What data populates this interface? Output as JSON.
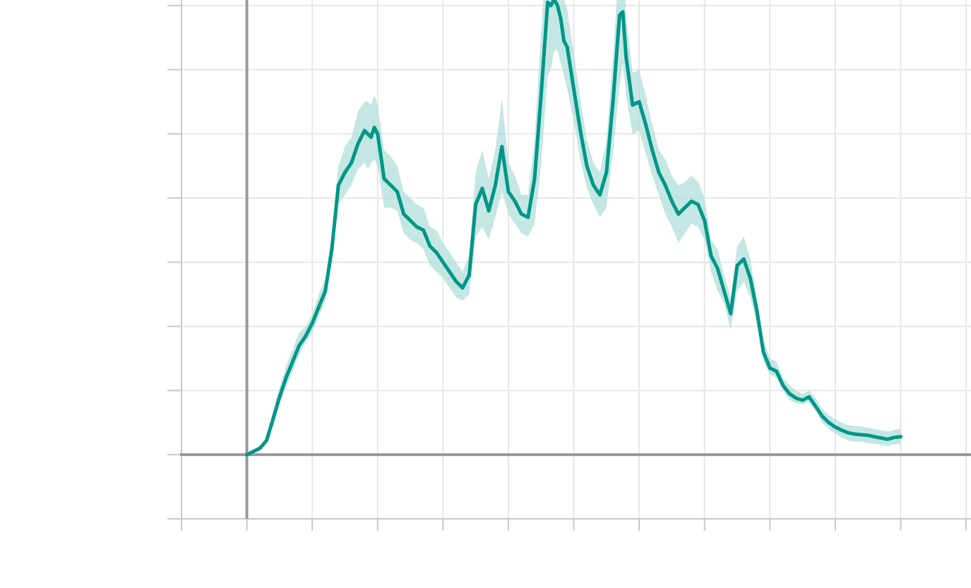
{
  "chart_data": {
    "type": "line",
    "title": "",
    "xlabel": "",
    "ylabel": "",
    "xlim": [
      -1,
      11
    ],
    "ylim": [
      -1,
      8
    ],
    "grid": true,
    "legend": "none",
    "x_ticks": [
      -1,
      0,
      1,
      2,
      3,
      4,
      5,
      6,
      7,
      8,
      9,
      10,
      11
    ],
    "y_ticks": [
      -1,
      0,
      1,
      2,
      3,
      4,
      5,
      6,
      7,
      8
    ],
    "tick_labels_visible": false,
    "colors": {
      "line": "#009688",
      "band": "#b2dfdb",
      "grid": "#e6e6e6",
      "zero_axis": "#999999",
      "frame": "#c8c8c8"
    },
    "series": [
      {
        "color": "#009688",
        "x": [
          0.0,
          0.1,
          0.2,
          0.3,
          0.4,
          0.5,
          0.6,
          0.7,
          0.8,
          0.9,
          1.0,
          1.1,
          1.2,
          1.3,
          1.4,
          1.5,
          1.6,
          1.7,
          1.8,
          1.85,
          1.9,
          1.95,
          2.0,
          2.1,
          2.2,
          2.3,
          2.4,
          2.5,
          2.6,
          2.7,
          2.8,
          2.9,
          3.0,
          3.1,
          3.2,
          3.3,
          3.4,
          3.5,
          3.6,
          3.7,
          3.8,
          3.9,
          4.0,
          4.1,
          4.2,
          4.3,
          4.4,
          4.5,
          4.6,
          4.65,
          4.7,
          4.75,
          4.8,
          4.85,
          4.9,
          5.0,
          5.1,
          5.2,
          5.3,
          5.4,
          5.5,
          5.6,
          5.7,
          5.75,
          5.8,
          5.9,
          6.0,
          6.1,
          6.2,
          6.3,
          6.4,
          6.5,
          6.6,
          6.7,
          6.8,
          6.9,
          7.0,
          7.1,
          7.2,
          7.3,
          7.4,
          7.5,
          7.6,
          7.7,
          7.8,
          7.9,
          8.0,
          8.1,
          8.2,
          8.3,
          8.4,
          8.5,
          8.6,
          8.7,
          8.8,
          8.9,
          9.0,
          9.1,
          9.2,
          9.3,
          9.4,
          9.5,
          9.6,
          9.7,
          9.8,
          9.9,
          10.0
        ],
        "y": [
          0.0,
          0.05,
          0.1,
          0.22,
          0.55,
          0.9,
          1.2,
          1.45,
          1.7,
          1.85,
          2.05,
          2.3,
          2.55,
          3.2,
          4.2,
          4.4,
          4.55,
          4.85,
          5.05,
          5.0,
          4.95,
          5.1,
          5.0,
          4.3,
          4.2,
          4.1,
          3.75,
          3.65,
          3.55,
          3.5,
          3.25,
          3.15,
          3.0,
          2.85,
          2.7,
          2.6,
          2.8,
          3.9,
          4.15,
          3.8,
          4.2,
          4.8,
          4.1,
          3.95,
          3.75,
          3.7,
          4.3,
          5.6,
          7.05,
          7.0,
          7.1,
          7.0,
          6.8,
          6.45,
          6.35,
          5.7,
          5.05,
          4.5,
          4.2,
          4.05,
          4.4,
          5.5,
          6.85,
          6.9,
          6.2,
          5.45,
          5.5,
          5.15,
          4.75,
          4.4,
          4.2,
          3.95,
          3.75,
          3.85,
          3.95,
          3.9,
          3.65,
          3.1,
          2.9,
          2.55,
          2.2,
          2.95,
          3.05,
          2.75,
          2.25,
          1.6,
          1.35,
          1.3,
          1.08,
          0.95,
          0.88,
          0.85,
          0.9,
          0.75,
          0.6,
          0.5,
          0.43,
          0.38,
          0.34,
          0.32,
          0.31,
          0.3,
          0.28,
          0.26,
          0.24,
          0.27,
          0.28
        ],
        "y_lower": [
          0.0,
          0.04,
          0.08,
          0.18,
          0.45,
          0.8,
          1.05,
          1.3,
          1.55,
          1.75,
          1.9,
          2.15,
          2.4,
          3.0,
          3.9,
          4.05,
          4.2,
          4.45,
          4.55,
          4.45,
          4.55,
          4.6,
          4.5,
          3.85,
          3.85,
          3.8,
          3.45,
          3.35,
          3.3,
          3.2,
          2.95,
          2.85,
          2.75,
          2.6,
          2.45,
          2.4,
          2.5,
          3.4,
          3.55,
          3.35,
          3.7,
          4.1,
          3.75,
          3.6,
          3.45,
          3.4,
          3.6,
          4.5,
          5.9,
          6.0,
          6.3,
          6.3,
          6.1,
          5.9,
          5.7,
          5.2,
          4.6,
          4.15,
          3.9,
          3.7,
          3.85,
          4.7,
          5.75,
          6.1,
          5.6,
          5.0,
          5.05,
          4.7,
          4.35,
          4.05,
          3.75,
          3.55,
          3.3,
          3.45,
          3.6,
          3.55,
          3.35,
          2.85,
          2.55,
          2.35,
          1.95,
          2.55,
          2.7,
          2.45,
          2.05,
          1.45,
          1.25,
          1.2,
          1.0,
          0.85,
          0.8,
          0.78,
          0.82,
          0.68,
          0.5,
          0.4,
          0.33,
          0.27,
          0.22,
          0.2,
          0.2,
          0.18,
          0.17,
          0.15,
          0.13,
          0.16,
          0.17
        ],
        "y_upper": [
          0.02,
          0.08,
          0.14,
          0.28,
          0.68,
          1.05,
          1.38,
          1.65,
          1.9,
          2.0,
          2.2,
          2.5,
          2.75,
          3.45,
          4.5,
          4.8,
          4.95,
          5.35,
          5.5,
          5.5,
          5.45,
          5.6,
          5.45,
          4.75,
          4.65,
          4.5,
          4.1,
          4.0,
          3.9,
          3.85,
          3.55,
          3.5,
          3.3,
          3.15,
          3.0,
          2.85,
          3.1,
          4.4,
          4.75,
          4.3,
          4.75,
          5.55,
          4.55,
          4.35,
          4.05,
          4.05,
          4.9,
          6.6,
          8.0,
          7.9,
          8.0,
          7.8,
          7.5,
          7.1,
          6.95,
          6.25,
          5.55,
          4.9,
          4.55,
          4.4,
          4.9,
          6.2,
          7.75,
          8.0,
          6.85,
          5.95,
          6.0,
          5.6,
          5.15,
          4.75,
          4.6,
          4.35,
          4.2,
          4.25,
          4.35,
          4.25,
          4.0,
          3.35,
          3.2,
          2.8,
          2.45,
          3.25,
          3.4,
          3.05,
          2.45,
          1.8,
          1.5,
          1.45,
          1.2,
          1.08,
          1.0,
          0.95,
          1.0,
          0.88,
          0.72,
          0.62,
          0.55,
          0.5,
          0.46,
          0.45,
          0.44,
          0.42,
          0.4,
          0.38,
          0.36,
          0.39,
          0.4
        ]
      }
    ]
  }
}
